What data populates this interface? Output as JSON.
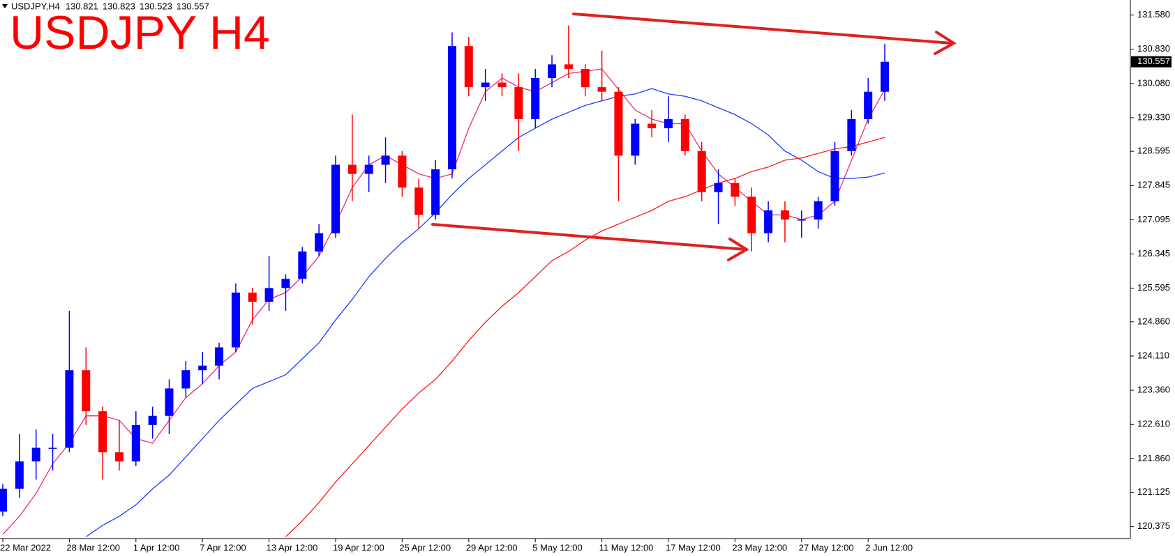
{
  "chart_data": {
    "type": "candlestick",
    "title": "USDJPY H4",
    "header": {
      "symbol": "USDJPY,H4",
      "quote": [
        130.821,
        130.823,
        130.523,
        130.557
      ]
    },
    "current_price": 130.557,
    "categories": [
      "22 Mar 2022",
      null,
      null,
      null,
      "28 Mar 12:00",
      null,
      null,
      null,
      "1 Apr 12:00",
      null,
      null,
      null,
      "7 Apr 12:00",
      null,
      null,
      null,
      "13 Apr 12:00",
      null,
      null,
      null,
      "19 Apr 12:00",
      null,
      null,
      null,
      "25 Apr 12:00",
      null,
      null,
      null,
      "29 Apr 12:00",
      null,
      null,
      null,
      "5 May 12:00",
      null,
      null,
      null,
      "11 May 12:00",
      null,
      null,
      null,
      "17 May 12:00",
      null,
      null,
      null,
      "23 May 12:00",
      null,
      null,
      null,
      "27 May 12:00",
      null,
      null,
      null,
      "2 Jun 12:00",
      null
    ],
    "open": [
      120.7,
      121.2,
      121.8,
      122.1,
      122.1,
      123.8,
      122.9,
      122.0,
      121.8,
      122.6,
      122.8,
      123.4,
      123.8,
      123.9,
      124.3,
      125.5,
      125.3,
      125.6,
      125.8,
      126.4,
      126.8,
      128.3,
      128.1,
      128.3,
      128.5,
      127.8,
      127.2,
      128.2,
      130.9,
      130.0,
      130.1,
      130.0,
      129.3,
      130.2,
      130.5,
      130.4,
      130.0,
      129.9,
      128.5,
      129.2,
      129.1,
      129.3,
      128.6,
      127.7,
      127.9,
      127.6,
      126.8,
      127.3,
      127.1,
      127.1,
      127.5,
      128.6,
      129.3,
      129.9
    ],
    "high": [
      121.3,
      122.4,
      122.5,
      122.4,
      125.1,
      124.3,
      123.0,
      122.7,
      122.9,
      123.0,
      123.6,
      124.0,
      124.2,
      124.4,
      125.7,
      125.6,
      126.3,
      125.9,
      126.5,
      127.0,
      128.5,
      129.4,
      128.5,
      128.9,
      128.6,
      128.0,
      128.4,
      131.2,
      131.1,
      130.4,
      130.3,
      130.3,
      130.4,
      130.7,
      131.35,
      130.5,
      130.8,
      130.0,
      129.3,
      129.5,
      129.8,
      129.4,
      128.8,
      128.2,
      128.0,
      127.8,
      127.5,
      127.5,
      127.3,
      127.6,
      128.8,
      129.5,
      130.2,
      130.95
    ],
    "low": [
      120.6,
      121.0,
      121.4,
      121.6,
      122.0,
      122.6,
      121.4,
      121.6,
      121.7,
      122.3,
      122.4,
      123.2,
      123.5,
      123.6,
      124.2,
      124.8,
      125.1,
      125.1,
      125.7,
      126.3,
      126.7,
      127.5,
      127.7,
      127.9,
      127.6,
      126.9,
      127.1,
      128.0,
      129.8,
      129.7,
      129.8,
      128.6,
      129.1,
      130.0,
      130.2,
      129.8,
      129.7,
      127.5,
      128.3,
      128.9,
      128.8,
      128.5,
      127.5,
      127.0,
      127.4,
      126.4,
      126.6,
      126.6,
      126.7,
      126.9,
      127.4,
      128.5,
      129.2,
      129.7
    ],
    "close": [
      121.2,
      121.8,
      122.1,
      122.1,
      123.8,
      122.9,
      122.0,
      121.8,
      122.6,
      122.8,
      123.4,
      123.8,
      123.9,
      124.3,
      125.5,
      125.3,
      125.6,
      125.8,
      126.4,
      126.8,
      128.3,
      128.1,
      128.3,
      128.5,
      127.8,
      127.2,
      128.2,
      130.9,
      130.0,
      130.1,
      130.0,
      129.3,
      130.2,
      130.5,
      130.4,
      130.0,
      129.9,
      128.5,
      129.2,
      129.1,
      129.3,
      128.6,
      127.7,
      127.9,
      127.6,
      126.8,
      127.3,
      127.1,
      127.1,
      127.5,
      128.6,
      129.3,
      129.9,
      130.557
    ],
    "up_color": "#0000ff",
    "down_color": "#ff0000",
    "series": [
      {
        "color": "#f0287a",
        "values": [
          120.2,
          120.6,
          121.1,
          121.75,
          122.2,
          122.8,
          122.8,
          122.7,
          122.3,
          122.2,
          122.7,
          123.2,
          123.5,
          123.9,
          124.2,
          124.9,
          125.35,
          125.5,
          125.85,
          126.3,
          127.0,
          127.8,
          128.3,
          128.5,
          128.3,
          128.1,
          128.0,
          128.1,
          129.1,
          129.9,
          130.2,
          130.0,
          129.9,
          130.1,
          130.3,
          130.35,
          130.4,
          129.95,
          129.5,
          129.3,
          129.2,
          129.2,
          128.6,
          128.1,
          127.8,
          127.5,
          127.2,
          127.2,
          127.1,
          127.2,
          127.5,
          128.4,
          129.3,
          129.95
        ]
      },
      {
        "color": "#1e3cff",
        "values": [
          null,
          null,
          null,
          null,
          null,
          120.15,
          120.4,
          120.6,
          120.85,
          121.2,
          121.5,
          121.9,
          122.3,
          122.7,
          123.05,
          123.4,
          123.55,
          123.7,
          124.05,
          124.4,
          124.9,
          125.35,
          125.85,
          126.25,
          126.6,
          126.9,
          127.25,
          127.65,
          128.0,
          128.3,
          128.6,
          128.9,
          129.1,
          129.3,
          129.45,
          129.6,
          129.7,
          129.8,
          129.85,
          129.97,
          129.85,
          129.8,
          129.7,
          129.55,
          129.4,
          129.2,
          128.95,
          128.6,
          128.4,
          128.15,
          128.0,
          128.0,
          128.03,
          128.12
        ]
      },
      {
        "color": "#ff1a1a",
        "values": [
          null,
          null,
          null,
          null,
          null,
          null,
          null,
          null,
          null,
          null,
          null,
          null,
          null,
          null,
          null,
          null,
          null,
          120.15,
          120.5,
          120.9,
          121.35,
          121.75,
          122.15,
          122.55,
          122.95,
          123.3,
          123.6,
          124.0,
          124.45,
          124.85,
          125.2,
          125.5,
          125.85,
          126.2,
          126.4,
          126.65,
          126.85,
          127.0,
          127.15,
          127.3,
          127.5,
          127.6,
          127.75,
          127.9,
          128.0,
          128.15,
          128.25,
          128.4,
          128.45,
          128.55,
          128.65,
          128.7,
          128.8,
          128.9
        ]
      }
    ],
    "ylim": [
      120.11,
      131.91
    ],
    "yticks": [
      {
        "value": 131.58,
        "label": "131.580"
      },
      {
        "value": 130.83,
        "label": "130.830"
      },
      {
        "value": 130.08,
        "label": "130.080"
      },
      {
        "value": 129.33,
        "label": "129.330"
      },
      {
        "value": 128.595,
        "label": "128.595"
      },
      {
        "value": 127.845,
        "label": "127.845"
      },
      {
        "value": 127.095,
        "label": "127.095"
      },
      {
        "value": 126.345,
        "label": "126.345"
      },
      {
        "value": 125.595,
        "label": "125.595"
      },
      {
        "value": 124.86,
        "label": "124.860"
      },
      {
        "value": 124.11,
        "label": "124.110"
      },
      {
        "value": 123.36,
        "label": "123.360"
      },
      {
        "value": 122.61,
        "label": "122.610"
      },
      {
        "value": 121.86,
        "label": "121.860"
      },
      {
        "value": 121.125,
        "label": "121.125"
      },
      {
        "value": 120.375,
        "label": "120.375"
      }
    ]
  }
}
